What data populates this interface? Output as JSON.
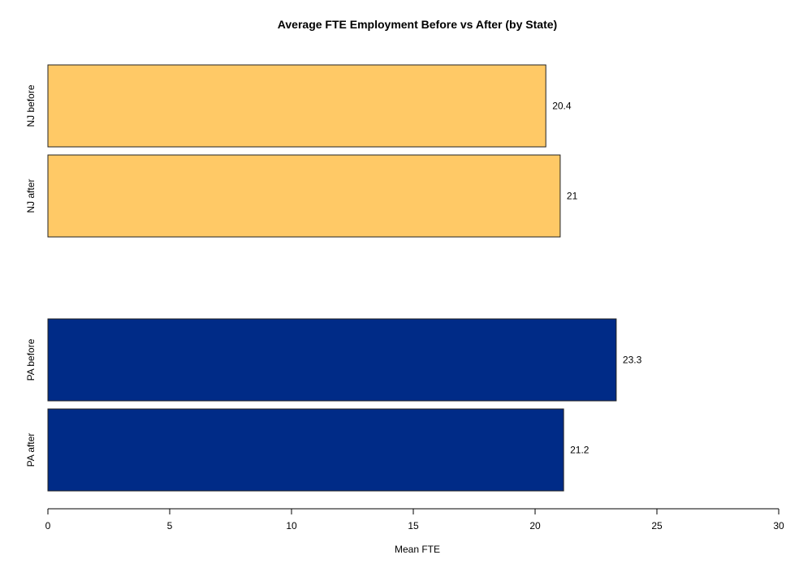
{
  "chart_data": {
    "type": "bar",
    "orientation": "horizontal",
    "title": "Average FTE Employment Before vs After (by State)",
    "xlabel": "Mean FTE",
    "ylabel": "",
    "xlim": [
      0,
      30
    ],
    "x_ticks": [
      0,
      5,
      10,
      15,
      20,
      25,
      30
    ],
    "grid": false,
    "groups": [
      {
        "color": "#FFC966",
        "bars": [
          {
            "category": "NJ before",
            "value": 20.44,
            "label": "20.4"
          },
          {
            "category": "NJ after",
            "value": 21.03,
            "label": "21"
          }
        ]
      },
      {
        "color": "#002B87",
        "bars": [
          {
            "category": "PA before",
            "value": 23.33,
            "label": "23.3"
          },
          {
            "category": "PA after",
            "value": 21.17,
            "label": "21.2"
          }
        ]
      }
    ]
  }
}
